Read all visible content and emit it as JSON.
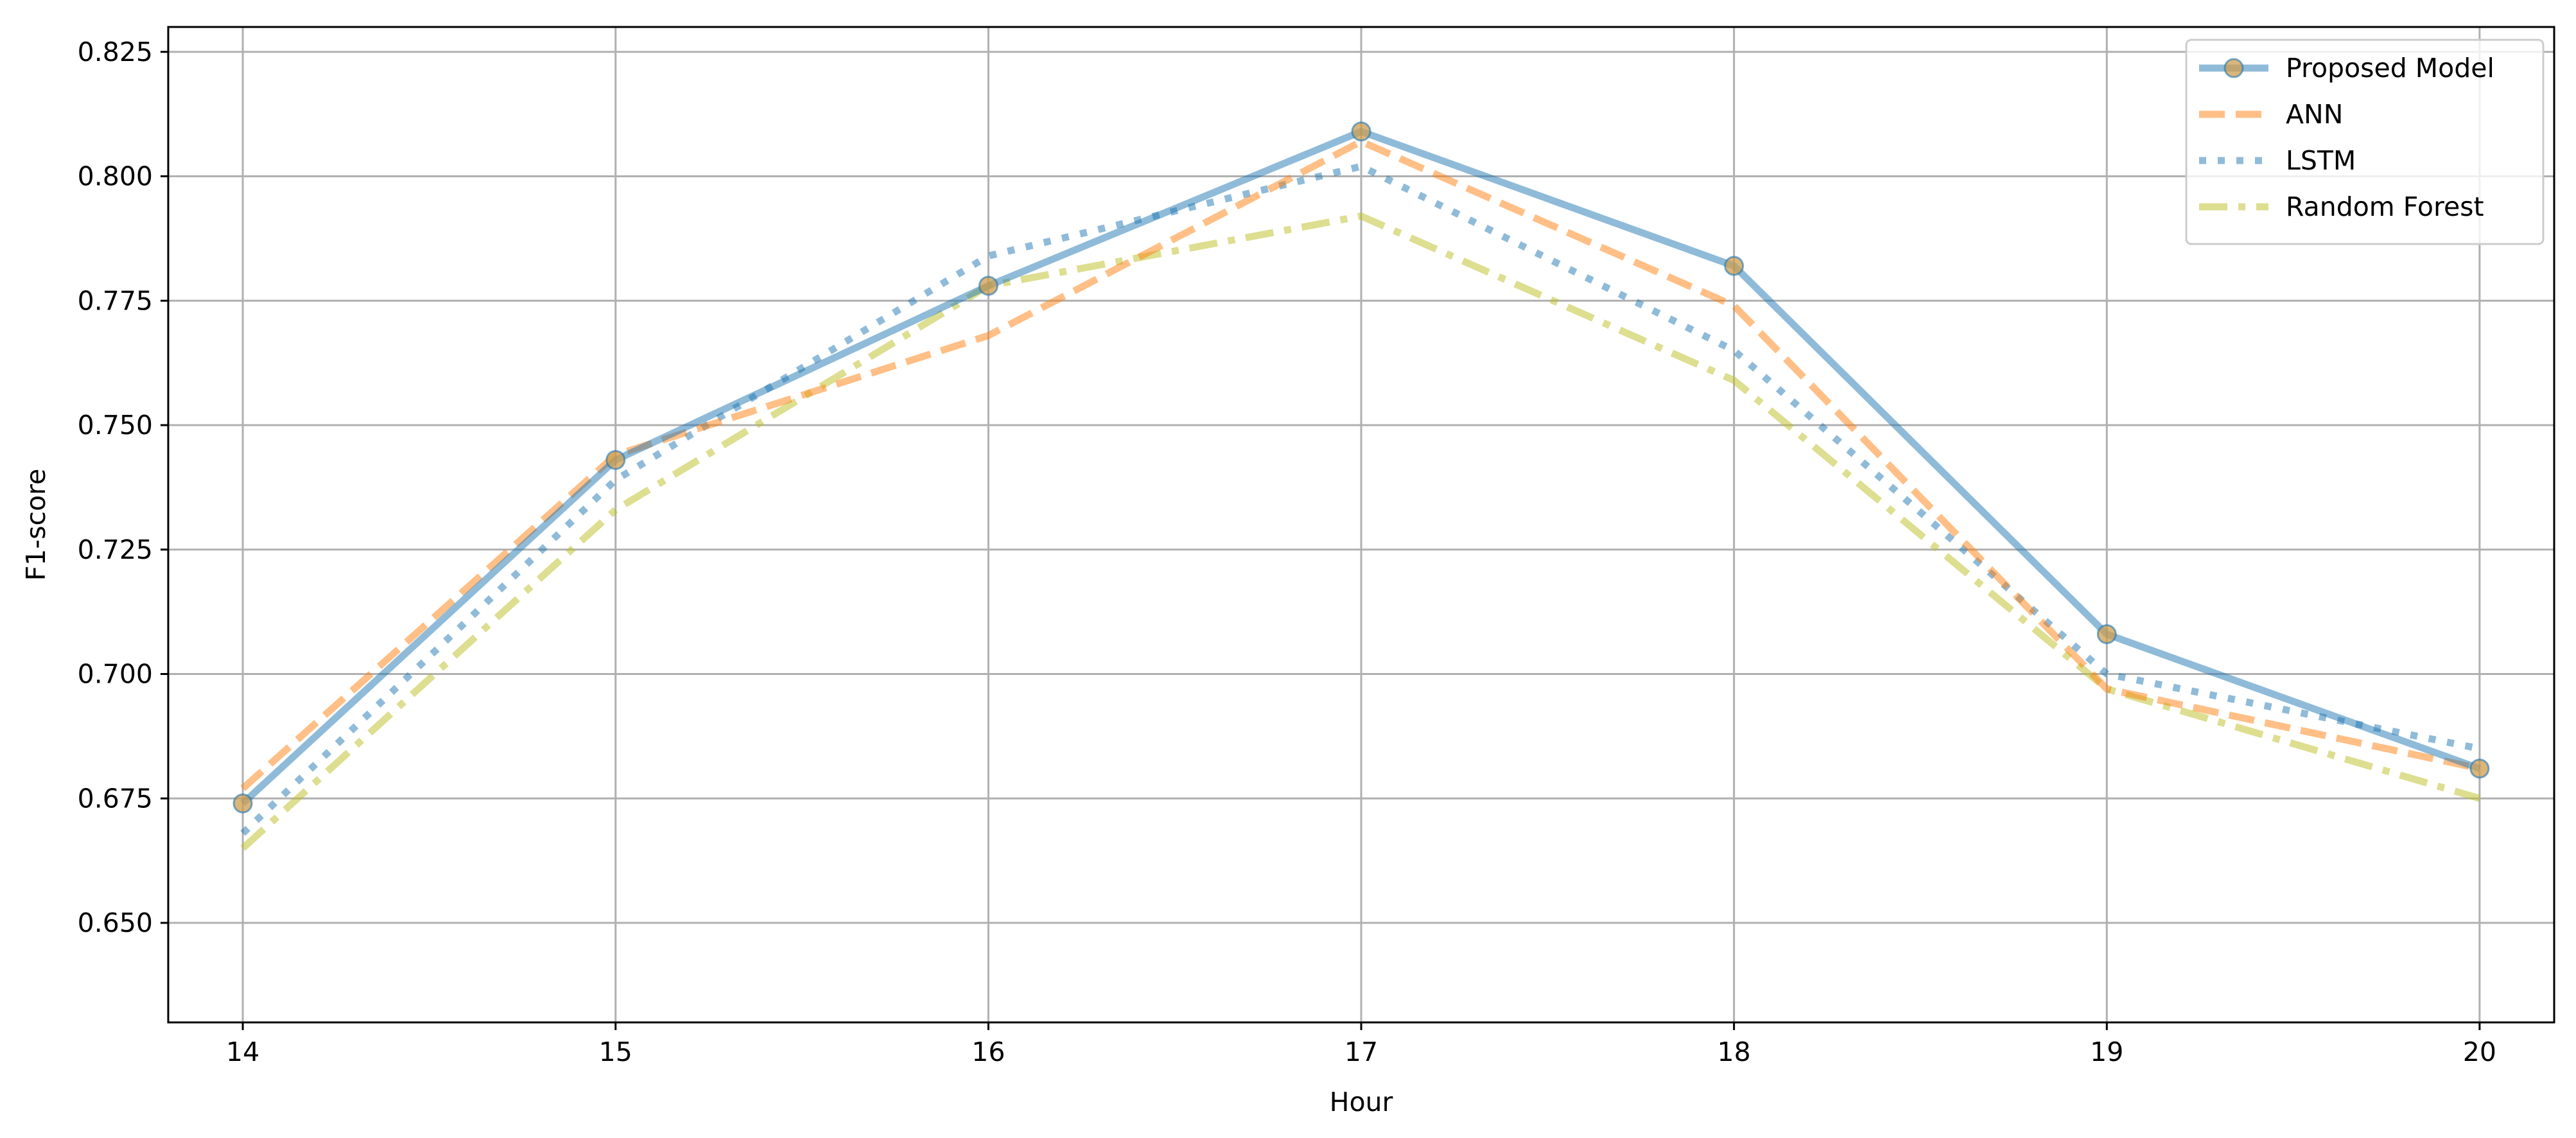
{
  "chart_data": {
    "type": "line",
    "title": "",
    "xlabel": "Hour",
    "ylabel": "F1-score",
    "x": [
      14,
      15,
      16,
      17,
      18,
      19,
      20
    ],
    "xlim": [
      13.8,
      20.2
    ],
    "ylim": [
      0.63,
      0.83
    ],
    "xticks": [
      "14",
      "15",
      "16",
      "17",
      "18",
      "19",
      "20"
    ],
    "yticks": [
      "0.650",
      "0.675",
      "0.700",
      "0.725",
      "0.750",
      "0.775",
      "0.800",
      "0.825"
    ],
    "grid": true,
    "legend_position": "top-right",
    "series": [
      {
        "name": "Proposed Model",
        "values": [
          0.674,
          0.743,
          0.778,
          0.809,
          0.782,
          0.708,
          0.681
        ],
        "color": "#1f77b4",
        "line_style": "solid",
        "marker": "circle",
        "marker_color": "#cf9e4d"
      },
      {
        "name": "ANN",
        "values": [
          0.677,
          0.744,
          0.768,
          0.807,
          0.774,
          0.697,
          0.681
        ],
        "color": "#ff7f0e",
        "line_style": "dashed",
        "marker": "none"
      },
      {
        "name": "LSTM",
        "values": [
          0.668,
          0.739,
          0.784,
          0.802,
          0.765,
          0.7,
          0.685
        ],
        "color": "#1f77b4",
        "line_style": "dotted",
        "marker": "none"
      },
      {
        "name": "Random Forest",
        "values": [
          0.665,
          0.733,
          0.778,
          0.792,
          0.759,
          0.697,
          0.675
        ],
        "color": "#bcbd22",
        "line_style": "dashdot",
        "marker": "none"
      }
    ]
  }
}
